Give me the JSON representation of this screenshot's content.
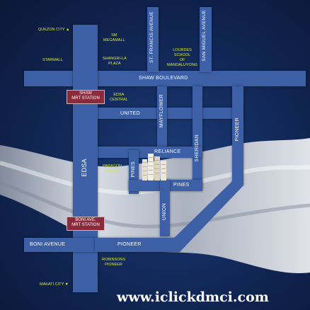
{
  "map": {
    "roads": {
      "shaw_boulevard": "SHAW BOULEVARD",
      "st_francis": "ST. FRANCIS AVENUE",
      "san_miguel": "SAN MIGUEL AVENUE",
      "united": "UNITED",
      "mayflower": "MAYFLOWER",
      "reliance": "RELIANCE",
      "sheridan": "SHERIDAN",
      "pioneer_vertical": "PIONEER",
      "edsa": "EDSA",
      "pines_vertical": "PINES",
      "pines_horizontal": "PINES",
      "union": "UNION",
      "boni_avenue": "BONI AVENUE",
      "pioneer_horizontal": "PIONEER"
    },
    "landmarks": {
      "quezon_city": "QUEZON CITY ▲",
      "sm_megamall": "SM\nMEGAMALL",
      "starmall": "STARMALL",
      "shangri_la": "SHANGRI-LA\nPLAZA",
      "lourdes_school": "LOURDES\nSCHOOL\nOF\nMANDALUYONG",
      "edsa_central": "EDSA\nCENTRAL",
      "paragon_plaza": "PARAGON\nPLAZA",
      "robinsons_pioneer": "ROBINSONS\nPIONEER",
      "makati_city": "MAKATI CITY ▼"
    },
    "stations": {
      "shaw_mrt": "SHAW\nMRT STATION",
      "boni_mrt": "BONI AVE.\nMRT STATION"
    },
    "colors": {
      "road": "#3c5fa6",
      "landmark_text": "#d7e83a",
      "station_fill": "#8a2a3a"
    }
  },
  "watermark": "www.iclickdmci.com"
}
